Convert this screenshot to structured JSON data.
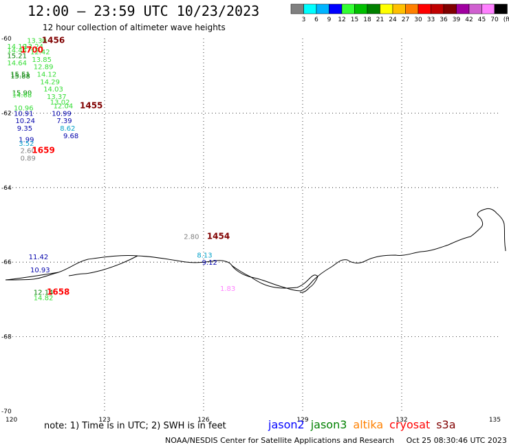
{
  "header": {
    "title": "12:00 – 23:59 UTC 10/23/2023",
    "subtitle": "12 hour collection of altimeter wave heights"
  },
  "colorbar": {
    "colors": [
      "#808080",
      "#00ffff",
      "#00b4ff",
      "#0000ff",
      "#33ff33",
      "#00c000",
      "#008000",
      "#ffff00",
      "#ffc000",
      "#ff8000",
      "#ff0000",
      "#c00000",
      "#800000",
      "#a000a0",
      "#d060d0",
      "#ff80ff",
      "#000000"
    ],
    "labels": [
      "3",
      "6",
      "9",
      "12",
      "15",
      "18",
      "21",
      "24",
      "27",
      "30",
      "33",
      "36",
      "39",
      "42",
      "45",
      "70"
    ],
    "unit": "(ft)"
  },
  "axes": {
    "lon_ticks": [
      "120",
      "123",
      "126",
      "129",
      "132",
      "135"
    ],
    "lat_ticks": [
      "-60",
      "-62",
      "-64",
      "-66",
      "-68",
      "-70"
    ]
  },
  "observations": [
    {
      "text": "13.30",
      "lon": 120.65,
      "lat": -60.05,
      "color": "#33dd33"
    },
    {
      "text": "1456",
      "lon": 121.1,
      "lat": -60.05,
      "color": "#800000",
      "pass": true
    },
    {
      "text": "14.19",
      "lon": 120.05,
      "lat": -60.2,
      "color": "#33dd33"
    },
    {
      "text": "13.24",
      "lon": 120.55,
      "lat": -60.2,
      "color": "#33dd33"
    },
    {
      "text": "14.44",
      "lon": 120.05,
      "lat": -60.3,
      "color": "#33dd33"
    },
    {
      "text": "1700",
      "lon": 120.45,
      "lat": -60.3,
      "color": "#ff0000",
      "pass": true
    },
    {
      "text": "12.42",
      "lon": 120.75,
      "lat": -60.35,
      "color": "#33dd33"
    },
    {
      "text": "15.21",
      "lon": 120.05,
      "lat": -60.45,
      "color": "#008000"
    },
    {
      "text": "13.85",
      "lon": 120.8,
      "lat": -60.55,
      "color": "#33dd33"
    },
    {
      "text": "14.64",
      "lon": 120.05,
      "lat": -60.65,
      "color": "#33dd33"
    },
    {
      "text": "12.89",
      "lon": 120.85,
      "lat": -60.75,
      "color": "#33dd33"
    },
    {
      "text": "15.51",
      "lon": 120.15,
      "lat": -60.95,
      "color": "#008000"
    },
    {
      "text": "14.12",
      "lon": 120.95,
      "lat": -60.95,
      "color": "#33dd33"
    },
    {
      "text": "15.88",
      "lon": 120.15,
      "lat": -61.0,
      "color": "#008000"
    },
    {
      "text": "14.29",
      "lon": 121.05,
      "lat": -61.15,
      "color": "#33dd33"
    },
    {
      "text": "14.03",
      "lon": 121.15,
      "lat": -61.35,
      "color": "#33dd33"
    },
    {
      "text": "15.90",
      "lon": 120.2,
      "lat": -61.45,
      "color": "#008000"
    },
    {
      "text": "14.68",
      "lon": 120.2,
      "lat": -61.5,
      "color": "#33dd33"
    },
    {
      "text": "13.37",
      "lon": 121.25,
      "lat": -61.55,
      "color": "#33dd33"
    },
    {
      "text": "13.02",
      "lon": 121.35,
      "lat": -61.7,
      "color": "#33dd33"
    },
    {
      "text": "12.04",
      "lon": 121.45,
      "lat": -61.8,
      "color": "#33dd33"
    },
    {
      "text": "1455",
      "lon": 122.25,
      "lat": -61.8,
      "color": "#800000",
      "pass": true
    },
    {
      "text": "10.96",
      "lon": 120.25,
      "lat": -61.85,
      "color": "#33dd33"
    },
    {
      "text": "10.99",
      "lon": 121.4,
      "lat": -62.0,
      "color": "#0000aa"
    },
    {
      "text": "10.91",
      "lon": 120.25,
      "lat": -62.0,
      "color": "#0000aa"
    },
    {
      "text": "10.24",
      "lon": 120.3,
      "lat": -62.2,
      "color": "#0000aa"
    },
    {
      "text": "7.39",
      "lon": 121.55,
      "lat": -62.2,
      "color": "#0000aa"
    },
    {
      "text": "9.35",
      "lon": 120.35,
      "lat": -62.4,
      "color": "#0000aa"
    },
    {
      "text": "8.62",
      "lon": 121.65,
      "lat": -62.4,
      "color": "#00a0c8"
    },
    {
      "text": "9.68",
      "lon": 121.75,
      "lat": -62.6,
      "color": "#0000aa"
    },
    {
      "text": "1.99",
      "lon": 120.4,
      "lat": -62.7,
      "color": "#0000aa"
    },
    {
      "text": "3.52",
      "lon": 120.4,
      "lat": -62.8,
      "color": "#00a0c8"
    },
    {
      "text": "2.60",
      "lon": 120.45,
      "lat": -63.0,
      "color": "#808080"
    },
    {
      "text": "1659",
      "lon": 120.8,
      "lat": -63.0,
      "color": "#ff0000",
      "pass": true
    },
    {
      "text": "0.89",
      "lon": 120.45,
      "lat": -63.2,
      "color": "#808080"
    },
    {
      "text": "2.80",
      "lon": 125.4,
      "lat": -65.3,
      "color": "#808080"
    },
    {
      "text": "1454",
      "lon": 126.1,
      "lat": -65.3,
      "color": "#800000",
      "pass": true
    },
    {
      "text": "11.42",
      "lon": 120.7,
      "lat": -65.85,
      "color": "#0000aa"
    },
    {
      "text": "8.13",
      "lon": 125.8,
      "lat": -65.8,
      "color": "#00a0c8"
    },
    {
      "text": "9.12",
      "lon": 125.95,
      "lat": -66.0,
      "color": "#0000aa"
    },
    {
      "text": "10.93",
      "lon": 120.75,
      "lat": -66.2,
      "color": "#0000aa"
    },
    {
      "text": "1.83",
      "lon": 126.5,
      "lat": -66.7,
      "color": "#ff80ff"
    },
    {
      "text": "12.14",
      "lon": 120.85,
      "lat": -66.8,
      "color": "#008000"
    },
    {
      "text": "1658",
      "lon": 121.25,
      "lat": -66.8,
      "color": "#ff0000",
      "pass": true
    },
    {
      "text": "14.82",
      "lon": 120.85,
      "lat": -66.95,
      "color": "#33dd33"
    }
  ],
  "footer": {
    "note": "note:  1) Time is in UTC;  2) SWH is in feet",
    "legend": [
      {
        "name": "jason2",
        "color": "#0000ff"
      },
      {
        "name": "jason3",
        "color": "#008000"
      },
      {
        "name": "altika",
        "color": "#ff8000"
      },
      {
        "name": "cryosat",
        "color": "#ff0000"
      },
      {
        "name": "s3a",
        "color": "#800000"
      }
    ],
    "credit": "NOAA/NESDIS Center for Satellite Applications and Research",
    "timestamp": "Oct 25 08:30:46 UTC 2023"
  }
}
